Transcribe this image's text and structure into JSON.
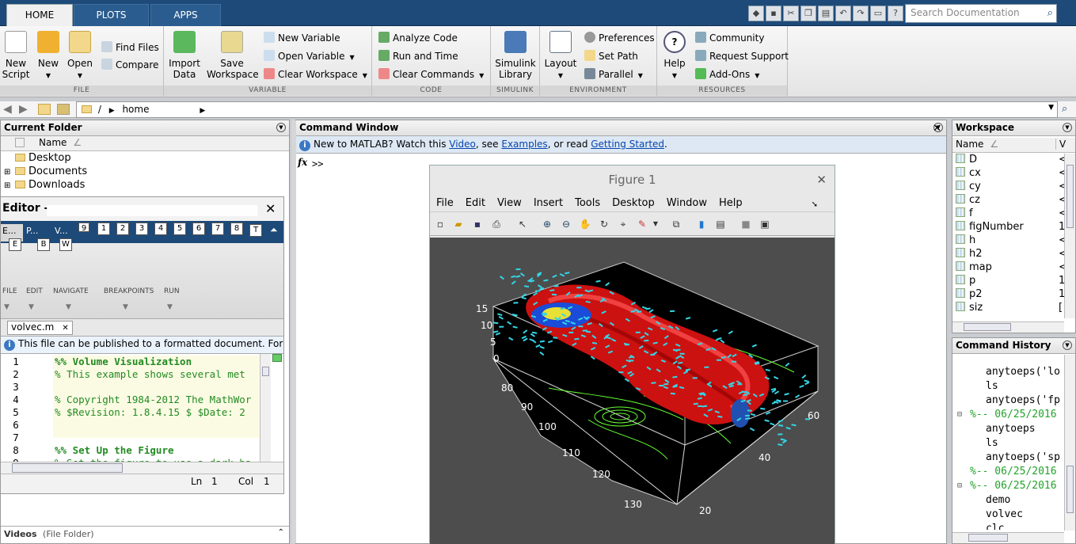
{
  "tabs": [
    {
      "label": "HOME"
    },
    {
      "label": "PLOTS"
    },
    {
      "label": "APPS"
    }
  ],
  "search": {
    "placeholder": "Search Documentation"
  },
  "ribbon": {
    "file": {
      "title": "FILE",
      "new_script": "New\nScript",
      "new": "New",
      "open": "Open",
      "find_files": "Find Files",
      "compare": "Compare"
    },
    "variable": {
      "title": "VARIABLE",
      "import": "Import\nData",
      "save": "Save\nWorkspace",
      "new_var": "New Variable",
      "open_var": "Open Variable",
      "clear_ws": "Clear Workspace"
    },
    "code": {
      "title": "CODE",
      "analyze": "Analyze Code",
      "run_time": "Run and Time",
      "clear_cmd": "Clear Commands"
    },
    "simulink": {
      "title": "SIMULINK",
      "lib": "Simulink\nLibrary"
    },
    "environment": {
      "title": "ENVIRONMENT",
      "layout": "Layout",
      "prefs": "Preferences",
      "setpath": "Set Path",
      "parallel": "Parallel"
    },
    "resources": {
      "title": "RESOURCES",
      "help": "Help",
      "community": "Community",
      "support": "Request Support",
      "addons": "Add-Ons"
    }
  },
  "address": {
    "root": "/",
    "home": "home"
  },
  "current_folder": {
    "title": "Current Folder",
    "col_name": "Name",
    "items": [
      "Desktop",
      "Documents",
      "Downloads"
    ],
    "footer": "Videos",
    "footer_type": "(File Folder)"
  },
  "editor": {
    "title": "Editor -",
    "tab_short": [
      "E...",
      "P...",
      "V..."
    ],
    "keys": [
      "E",
      "B",
      "W",
      "1",
      "2",
      "3",
      "4",
      "5",
      "6",
      "7",
      "8",
      "9",
      "T"
    ],
    "groups": [
      "FILE",
      "EDIT",
      "NAVIGATE",
      "BREAKPOINTS",
      "RUN"
    ],
    "file_tab": "volvec.m",
    "info": "This file can be published to a formatted document. For m",
    "lines": [
      {
        "n": "1",
        "t": "%% Volume Visualization",
        "cls": "cmb"
      },
      {
        "n": "2",
        "t": "% This example shows several met",
        "cls": "cm"
      },
      {
        "n": "3",
        "t": "",
        "cls": ""
      },
      {
        "n": "4",
        "t": "% Copyright 1984-2012 The MathWor",
        "cls": "cm"
      },
      {
        "n": "5",
        "t": "% $Revision: 1.8.4.15 $  $Date: 2",
        "cls": "cm"
      },
      {
        "n": "6",
        "t": "",
        "cls": ""
      },
      {
        "n": "7",
        "t": "",
        "cls": ""
      },
      {
        "n": "8",
        "t": "%% Set Up the Figure",
        "cls": "cmb"
      },
      {
        "n": "9",
        "t": "% Set the figure to use a dark ba",
        "cls": "cm"
      }
    ],
    "status_ln_label": "Ln",
    "status_ln": "1",
    "status_col_label": "Col",
    "status_col": "1"
  },
  "command_window": {
    "title": "Command Window",
    "info_pre": "New to MATLAB? Watch this ",
    "link_video": "Video",
    "info_mid1": ", see ",
    "link_examples": "Examples",
    "info_mid2": ", or read ",
    "link_gs": "Getting Started",
    "info_end": ".",
    "fx": "fx",
    "prompt": ">>"
  },
  "figure": {
    "title": "Figure 1",
    "menu": [
      "File",
      "Edit",
      "View",
      "Insert",
      "Tools",
      "Desktop",
      "Window",
      "Help"
    ],
    "z_ticks": [
      "15",
      "10",
      "5",
      "0"
    ],
    "x_ticks": [
      "80",
      "90",
      "100",
      "110",
      "120",
      "130"
    ],
    "y_ticks": [
      "60",
      "40",
      "20"
    ]
  },
  "workspace": {
    "title": "Workspace",
    "col_name": "Name",
    "col_value": "V",
    "vars": [
      {
        "name": "D",
        "v": "<"
      },
      {
        "name": "cx",
        "v": "<"
      },
      {
        "name": "cy",
        "v": "<"
      },
      {
        "name": "cz",
        "v": "<"
      },
      {
        "name": "f",
        "v": "<"
      },
      {
        "name": "figNumber",
        "v": "1"
      },
      {
        "name": "h",
        "v": "<"
      },
      {
        "name": "h2",
        "v": "<"
      },
      {
        "name": "map",
        "v": "<"
      },
      {
        "name": "p",
        "v": "1"
      },
      {
        "name": "p2",
        "v": "1"
      },
      {
        "name": "siz",
        "v": "["
      }
    ]
  },
  "history": {
    "title": "Command History",
    "rows": [
      {
        "t": "anytoeps('lo",
        "sep": false
      },
      {
        "t": "ls",
        "sep": false
      },
      {
        "t": "anytoeps('fp",
        "sep": false
      },
      {
        "t": "%-- 06/25/2016",
        "sep": true
      },
      {
        "t": "anytoeps",
        "sep": false
      },
      {
        "t": "ls",
        "sep": false
      },
      {
        "t": "anytoeps('sp",
        "sep": false
      },
      {
        "t": "%-- 06/25/2016",
        "sep": true
      },
      {
        "t": "%-- 06/25/2016",
        "sep": true
      },
      {
        "t": "demo",
        "sep": false
      },
      {
        "t": "volvec",
        "sep": false
      },
      {
        "t": "clc",
        "sep": false
      }
    ]
  },
  "colors": {
    "accent": "#1d4a78",
    "link": "#0645ad",
    "comment": "#228b22",
    "plot_bg": "#000000",
    "surface": "#d42020",
    "vectors": "#33d6e6",
    "contour": "#66ff33"
  }
}
